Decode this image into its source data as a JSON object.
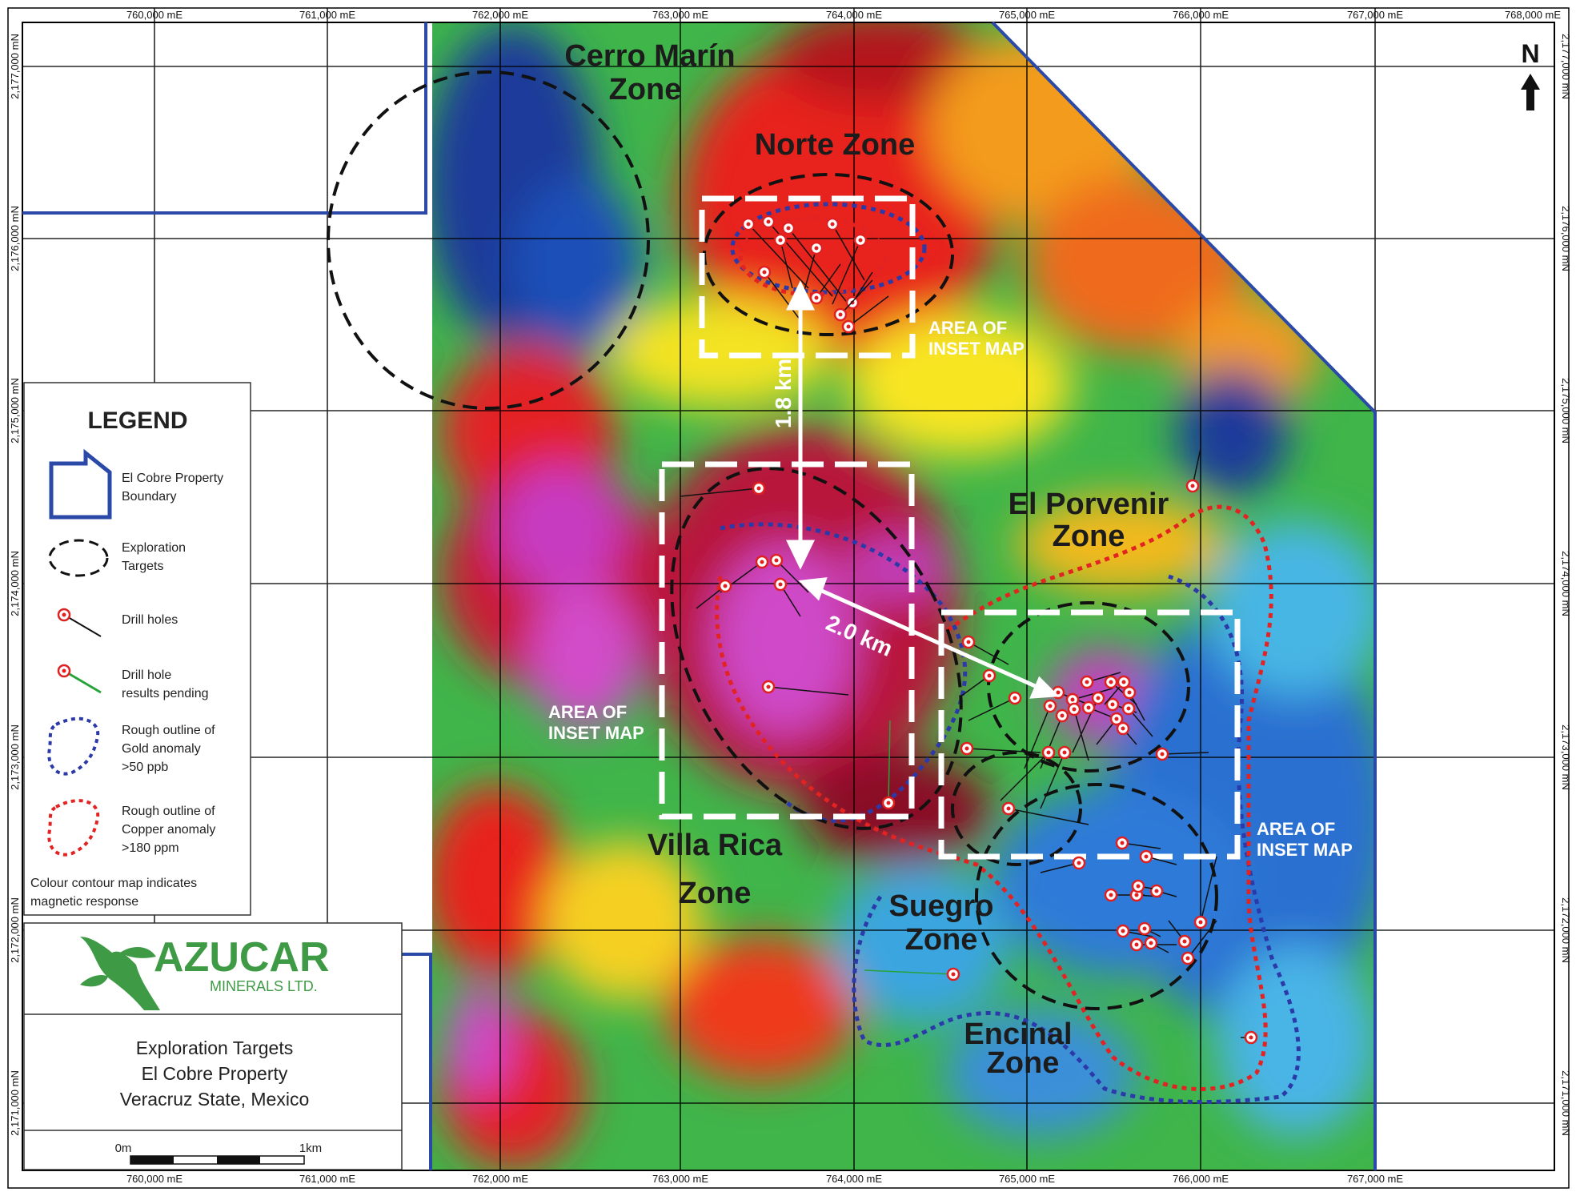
{
  "map": {
    "easting_labels": [
      "760,000 mE",
      "761,000 mE",
      "762,000 mE",
      "763,000 mE",
      "764,000 mE",
      "765,000 mE",
      "766,000 mE",
      "767,000 mE",
      "768,000 mE"
    ],
    "northing_labels": [
      "2,177,000 mN",
      "2,176,000 mN",
      "2,175,000 mN",
      "2,174,000 mN",
      "2,173,000 mN",
      "2,172,000 mN",
      "2,171,000 mN"
    ],
    "north_label": "N",
    "zones": {
      "cerro_marin": [
        "Cerro Marín",
        "Zone"
      ],
      "norte": "Norte Zone",
      "el_porvenir": [
        "El Porvenir",
        "Zone"
      ],
      "villa_rica": [
        "Villa Rica",
        "Zone"
      ],
      "suegro": [
        "Suegro",
        "Zone"
      ],
      "encinal": [
        "Encinal",
        "Zone"
      ]
    },
    "inset_label": [
      "AREA OF",
      "INSET MAP"
    ],
    "distances": {
      "north_south": "1.8 km",
      "diagonal": "2.0 km"
    },
    "colors": {
      "boundary": "#2b4aa8",
      "target_outline": "#111111",
      "gold_outline": "#2b3aa8",
      "copper_outline": "#e32222",
      "inset_box": "#ffffff",
      "drill_hole": "#e02020",
      "pending_line": "#27a33a",
      "brand_green": "#3f9a45"
    }
  },
  "legend": {
    "title": "LEGEND",
    "items": [
      {
        "icon": "property-boundary-icon",
        "label": [
          "El Cobre Property",
          "Boundary"
        ]
      },
      {
        "icon": "exploration-target-icon",
        "label": [
          "Exploration",
          "Targets"
        ]
      },
      {
        "icon": "drill-hole-icon",
        "label": [
          "Drill holes"
        ]
      },
      {
        "icon": "drill-hole-pending-icon",
        "label": [
          "Drill hole",
          "results pending"
        ]
      },
      {
        "icon": "gold-anomaly-icon",
        "label": [
          "Rough outline of",
          "Gold anomaly",
          ">50 ppb"
        ]
      },
      {
        "icon": "copper-anomaly-icon",
        "label": [
          "Rough outline of",
          "Copper anomaly",
          ">180 ppm"
        ]
      }
    ],
    "note": [
      "Colour contour map indicates",
      "magnetic response"
    ]
  },
  "logo": {
    "name": "AZUCAR",
    "sub": "MINERALS LTD."
  },
  "title_block": [
    "Exploration Targets",
    "El Cobre Property",
    "Veracruz State, Mexico"
  ],
  "scale": {
    "start": "0m",
    "end": "1km"
  }
}
